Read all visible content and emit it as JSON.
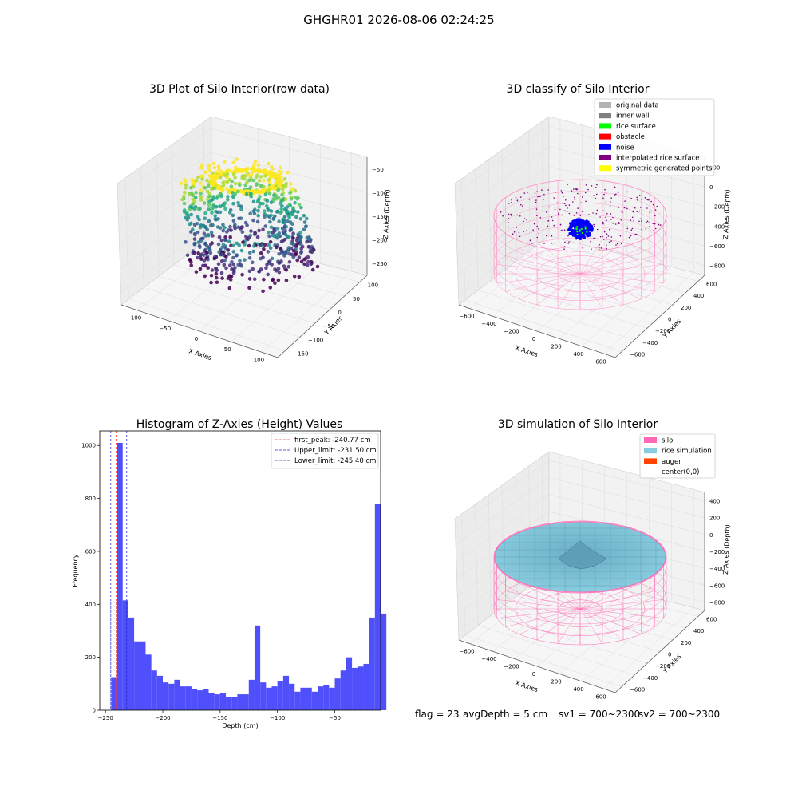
{
  "figure_title": "GHGHR01 2026-08-06 02:24:25",
  "footer": {
    "flag": "flag = 23",
    "avg_depth": "avgDepth = 5 cm",
    "sv1": "sv1 = 700~2300",
    "sv2": "sv2 = 700~2300"
  },
  "colors": {
    "histogram_bar": "#4f4ffb",
    "first_peak_line": "#ff3b3b",
    "limit_lines": "#2a2adf",
    "silo": "#ff69b4",
    "rice_simulation": "#87cedf",
    "auger": "#ff4500",
    "noise": "#0000ff"
  },
  "chart_data": [
    {
      "type": "scatter",
      "projection": "3d",
      "title": "3D Plot of Silo Interior(row data)",
      "xlabel": "X Axies",
      "ylabel": "Y Axies",
      "zlabel": "Z Axies (Depth)",
      "x_ticks": [
        "−100",
        "−50",
        "0",
        "50",
        "100"
      ],
      "y_ticks": [
        "−150",
        "−100",
        "−50",
        "0",
        "50",
        "100"
      ],
      "z_ticks": [
        "−250",
        "−200",
        "−150",
        "−100",
        "−50"
      ],
      "colormap": "viridis"
    },
    {
      "type": "scatter",
      "projection": "3d",
      "title": "3D classify of Silo Interior",
      "xlabel": "X Axies",
      "ylabel": "Y Axies",
      "zlabel": "Z Axies (Depth)",
      "x_ticks": [
        "−600",
        "−400",
        "−200",
        "0",
        "200",
        "400",
        "600"
      ],
      "y_ticks": [
        "−600",
        "−400",
        "−200",
        "0",
        "200",
        "400",
        "600"
      ],
      "z_ticks": [
        "−800",
        "−600",
        "−400",
        "−200",
        "0",
        "200"
      ],
      "legend": [
        {
          "label": "original data",
          "color": "#b3b3b3"
        },
        {
          "label": "inner wall",
          "color": "#808080"
        },
        {
          "label": "rice surface",
          "color": "#00ff00"
        },
        {
          "label": "obstacle",
          "color": "#ff0000"
        },
        {
          "label": "noise",
          "color": "#0000ff"
        },
        {
          "label": "interpolated rice surface",
          "color": "#800080"
        },
        {
          "label": "symmetric generated points",
          "color": "#ffff00"
        }
      ],
      "legend_position": "top-right"
    },
    {
      "type": "bar",
      "title": "Histogram of Z-Axies (Height) Values",
      "xlabel": "Depth (cm)",
      "ylabel": "Frequency",
      "xlim": [
        -255,
        -10
      ],
      "ylim": [
        0,
        1055
      ],
      "x_ticks": [
        -250,
        -200,
        -150,
        -100,
        -50
      ],
      "x_tick_labels": [
        "−250",
        "−200",
        "−150",
        "−100",
        "−50"
      ],
      "y_ticks": [
        0,
        200,
        400,
        600,
        800,
        1000
      ],
      "y_tick_labels": [
        "0",
        "200",
        "400",
        "600",
        "800",
        "1000"
      ],
      "bin_start": -245,
      "bin_width": 5,
      "values": [
        125,
        1010,
        415,
        350,
        260,
        260,
        210,
        150,
        130,
        105,
        100,
        115,
        90,
        90,
        80,
        75,
        80,
        65,
        60,
        65,
        50,
        50,
        60,
        60,
        115,
        320,
        105,
        85,
        90,
        110,
        130,
        100,
        70,
        85,
        85,
        70,
        90,
        95,
        85,
        120,
        150,
        200,
        160,
        165,
        175,
        350,
        780,
        365
      ],
      "vlines": [
        {
          "label": "first_peak: -240.77 cm",
          "x": -240.77,
          "style": "dashed",
          "color": "#ff3b3b"
        },
        {
          "label": "Upper_limit: -231.50 cm",
          "x": -231.5,
          "style": "dashed",
          "color": "#2a2adf"
        },
        {
          "label": "Lower_limit: -245.40 cm",
          "x": -245.4,
          "style": "dashed",
          "color": "#2a2adf"
        }
      ],
      "legend_position": "top-right"
    },
    {
      "type": "surface",
      "projection": "3d",
      "title": "3D simulation of Silo Interior",
      "xlabel": "X Axies",
      "ylabel": "Y Axies",
      "zlabel": "Z Axies (Depth)",
      "x_ticks": [
        "−600",
        "−400",
        "−200",
        "0",
        "200",
        "400",
        "600"
      ],
      "y_ticks": [
        "−600",
        "−400",
        "−200",
        "0",
        "200",
        "400",
        "600"
      ],
      "z_ticks": [
        "−800",
        "−600",
        "−400",
        "−200",
        "0",
        "200",
        "400"
      ],
      "legend": [
        {
          "label": "silo",
          "color": "#ff69b4"
        },
        {
          "label": "rice simulation",
          "color": "#87cedf"
        },
        {
          "label": "auger",
          "color": "#ff4500"
        },
        {
          "label": "center(0,0)",
          "color": "#ffffff"
        }
      ],
      "legend_position": "top-right"
    }
  ]
}
